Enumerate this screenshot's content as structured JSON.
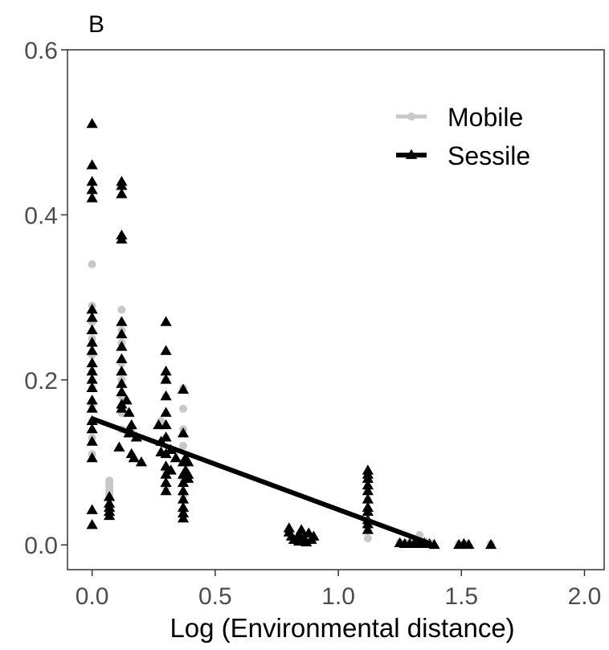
{
  "chart_data": {
    "type": "scatter",
    "panel_label": "B",
    "title": "",
    "xlabel": "Log (Environmental distance)",
    "ylabel": "",
    "xlim": [
      -0.1,
      2.08
    ],
    "ylim": [
      -0.03,
      0.6
    ],
    "x_ticks": [
      0.0,
      0.5,
      1.0,
      1.5,
      2.0
    ],
    "x_tick_labels": [
      "0.0",
      "0.5",
      "1.0",
      "1.5",
      "2.0"
    ],
    "y_ticks": [
      0.0,
      0.2,
      0.4,
      0.6
    ],
    "y_tick_labels": [
      "0.0",
      "0.2",
      "0.4",
      "0.6"
    ],
    "grid": false,
    "legend_position": "top-right",
    "colors": {
      "Mobile": "#c8c8c8",
      "Sessile": "#000000"
    },
    "series": [
      {
        "name": "Mobile",
        "marker": "circle",
        "points": [
          [
            0.0,
            0.34
          ],
          [
            0.0,
            0.29
          ],
          [
            0.0,
            0.27
          ],
          [
            0.0,
            0.25
          ],
          [
            0.0,
            0.23
          ],
          [
            0.0,
            0.21
          ],
          [
            0.0,
            0.19
          ],
          [
            0.0,
            0.17
          ],
          [
            0.0,
            0.15
          ],
          [
            0.0,
            0.13
          ],
          [
            0.0,
            0.11
          ],
          [
            0.07,
            0.078
          ],
          [
            0.07,
            0.074
          ],
          [
            0.07,
            0.07
          ],
          [
            0.07,
            0.066
          ],
          [
            0.07,
            0.062
          ],
          [
            0.07,
            0.058
          ],
          [
            0.12,
            0.285
          ],
          [
            0.12,
            0.26
          ],
          [
            0.12,
            0.245
          ],
          [
            0.12,
            0.22
          ],
          [
            0.12,
            0.2
          ],
          [
            0.12,
            0.18
          ],
          [
            0.12,
            0.16
          ],
          [
            0.12,
            0.14
          ],
          [
            0.16,
            0.14
          ],
          [
            0.18,
            0.13
          ],
          [
            0.28,
            0.15
          ],
          [
            0.3,
            0.2
          ],
          [
            0.3,
            0.18
          ],
          [
            0.3,
            0.13
          ],
          [
            0.3,
            0.11
          ],
          [
            0.3,
            0.09
          ],
          [
            0.3,
            0.07
          ],
          [
            0.37,
            0.19
          ],
          [
            0.37,
            0.165
          ],
          [
            0.37,
            0.14
          ],
          [
            0.37,
            0.12
          ],
          [
            0.37,
            0.1
          ],
          [
            0.37,
            0.08
          ],
          [
            0.37,
            0.06
          ],
          [
            0.37,
            0.04
          ],
          [
            0.8,
            0.014
          ],
          [
            0.84,
            0.01
          ],
          [
            0.87,
            0.008
          ],
          [
            0.9,
            0.007
          ],
          [
            1.12,
            0.07
          ],
          [
            1.12,
            0.055
          ],
          [
            1.12,
            0.04
          ],
          [
            1.12,
            0.028
          ],
          [
            1.12,
            0.018
          ],
          [
            1.12,
            0.008
          ],
          [
            1.25,
            0.003
          ],
          [
            1.28,
            0.002
          ],
          [
            1.3,
            0.006
          ],
          [
            1.33,
            0.012
          ],
          [
            1.35,
            0.004
          ],
          [
            1.38,
            0.002
          ],
          [
            1.49,
            0.001
          ],
          [
            1.52,
            0.001
          ],
          [
            1.62,
            0.001
          ]
        ],
        "fit": {
          "x_start": 0.0,
          "y_start": 0.153,
          "x_end": 1.37,
          "y_end": 0.003
        }
      },
      {
        "name": "Sessile",
        "marker": "triangle",
        "points": [
          [
            0.0,
            0.51
          ],
          [
            0.0,
            0.46
          ],
          [
            0.0,
            0.44
          ],
          [
            0.0,
            0.43
          ],
          [
            0.0,
            0.42
          ],
          [
            0.0,
            0.285
          ],
          [
            0.0,
            0.275
          ],
          [
            0.0,
            0.26
          ],
          [
            0.0,
            0.245
          ],
          [
            0.0,
            0.235
          ],
          [
            0.0,
            0.22
          ],
          [
            0.0,
            0.21
          ],
          [
            0.0,
            0.2
          ],
          [
            0.0,
            0.19
          ],
          [
            0.0,
            0.175
          ],
          [
            0.0,
            0.165
          ],
          [
            0.0,
            0.15
          ],
          [
            0.0,
            0.14
          ],
          [
            0.0,
            0.125
          ],
          [
            0.0,
            0.105
          ],
          [
            0.0,
            0.042
          ],
          [
            0.0,
            0.024
          ],
          [
            0.07,
            0.058
          ],
          [
            0.07,
            0.05
          ],
          [
            0.07,
            0.045
          ],
          [
            0.07,
            0.04
          ],
          [
            0.07,
            0.035
          ],
          [
            0.12,
            0.44
          ],
          [
            0.12,
            0.435
          ],
          [
            0.12,
            0.425
          ],
          [
            0.12,
            0.375
          ],
          [
            0.12,
            0.37
          ],
          [
            0.12,
            0.27
          ],
          [
            0.12,
            0.255
          ],
          [
            0.12,
            0.24
          ],
          [
            0.12,
            0.225
          ],
          [
            0.12,
            0.21
          ],
          [
            0.12,
            0.195
          ],
          [
            0.12,
            0.185
          ],
          [
            0.12,
            0.17
          ],
          [
            0.12,
            0.165
          ],
          [
            0.11,
            0.118
          ],
          [
            0.14,
            0.175
          ],
          [
            0.15,
            0.16
          ],
          [
            0.15,
            0.14
          ],
          [
            0.15,
            0.135
          ],
          [
            0.16,
            0.145
          ],
          [
            0.16,
            0.11
          ],
          [
            0.17,
            0.105
          ],
          [
            0.18,
            0.13
          ],
          [
            0.2,
            0.1
          ],
          [
            0.27,
            0.145
          ],
          [
            0.28,
            0.125
          ],
          [
            0.28,
            0.112
          ],
          [
            0.3,
            0.27
          ],
          [
            0.3,
            0.235
          ],
          [
            0.3,
            0.21
          ],
          [
            0.3,
            0.2
          ],
          [
            0.3,
            0.18
          ],
          [
            0.3,
            0.16
          ],
          [
            0.3,
            0.145
          ],
          [
            0.3,
            0.13
          ],
          [
            0.3,
            0.11
          ],
          [
            0.3,
            0.095
          ],
          [
            0.3,
            0.085
          ],
          [
            0.3,
            0.075
          ],
          [
            0.3,
            0.065
          ],
          [
            0.32,
            0.115
          ],
          [
            0.32,
            0.09
          ],
          [
            0.34,
            0.105
          ],
          [
            0.37,
            0.188
          ],
          [
            0.37,
            0.135
          ],
          [
            0.37,
            0.1
          ],
          [
            0.37,
            0.085
          ],
          [
            0.37,
            0.075
          ],
          [
            0.37,
            0.065
          ],
          [
            0.37,
            0.055
          ],
          [
            0.37,
            0.045
          ],
          [
            0.37,
            0.038
          ],
          [
            0.37,
            0.032
          ],
          [
            0.38,
            0.105
          ],
          [
            0.38,
            0.09
          ],
          [
            0.39,
            0.1
          ],
          [
            0.39,
            0.085
          ],
          [
            0.39,
            0.08
          ],
          [
            0.8,
            0.02
          ],
          [
            0.8,
            0.015
          ],
          [
            0.81,
            0.01
          ],
          [
            0.82,
            0.006
          ],
          [
            0.84,
            0.004
          ],
          [
            0.84,
            0.012
          ],
          [
            0.85,
            0.018
          ],
          [
            0.86,
            0.008
          ],
          [
            0.87,
            0.003
          ],
          [
            0.88,
            0.014
          ],
          [
            0.89,
            0.006
          ],
          [
            0.9,
            0.01
          ],
          [
            1.12,
            0.09
          ],
          [
            1.12,
            0.085
          ],
          [
            1.12,
            0.08
          ],
          [
            1.12,
            0.072
          ],
          [
            1.12,
            0.065
          ],
          [
            1.12,
            0.055
          ],
          [
            1.12,
            0.045
          ],
          [
            1.12,
            0.04
          ],
          [
            1.12,
            0.03
          ],
          [
            1.12,
            0.025
          ],
          [
            1.12,
            0.018
          ],
          [
            1.25,
            0.002
          ],
          [
            1.27,
            0.001
          ],
          [
            1.29,
            0.001
          ],
          [
            1.31,
            0.002
          ],
          [
            1.33,
            0.001
          ],
          [
            1.35,
            0.002
          ],
          [
            1.37,
            0.001
          ],
          [
            1.39,
            0.0
          ],
          [
            1.49,
            0.0
          ],
          [
            1.51,
            0.001
          ],
          [
            1.53,
            0.0
          ],
          [
            1.62,
            0.0
          ]
        ],
        "fit": {
          "x_start": 0.0,
          "y_start": 0.153,
          "x_end": 1.37,
          "y_end": 0.002
        }
      }
    ]
  }
}
